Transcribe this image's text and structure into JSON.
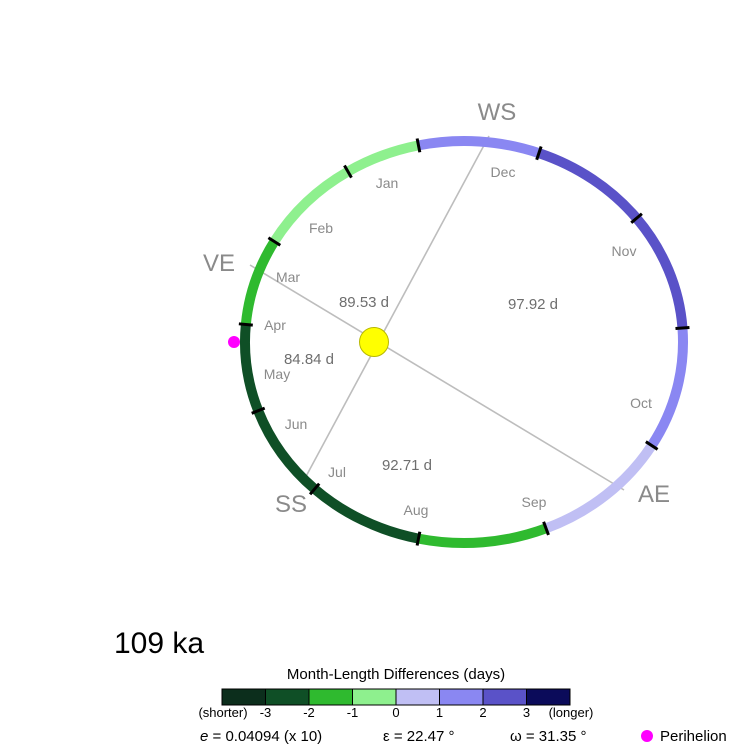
{
  "orbit": {
    "seasons": {
      "ws": "WS",
      "ve": "VE",
      "ss": "SS",
      "ae": "AE"
    },
    "months": [
      {
        "label": "Jan",
        "color": "#8ef08e"
      },
      {
        "label": "Dec",
        "color": "#8a87f2"
      },
      {
        "label": "Nov",
        "color": "#5a52c8"
      },
      {
        "label": "Oct",
        "color": "#5a52c8"
      },
      {
        "label": "Sep",
        "color": "#8a87f2"
      },
      {
        "label": "Aug",
        "color": "#c0bff4"
      },
      {
        "label": "Jul",
        "color": "#2fba2f"
      },
      {
        "label": "Jun",
        "color": "#0f4f26"
      },
      {
        "label": "May",
        "color": "#0f4f26"
      },
      {
        "label": "Apr",
        "color": "#0f4f26"
      },
      {
        "label": "Mar",
        "color": "#2fba2f"
      },
      {
        "label": "Feb",
        "color": "#8ef08e"
      }
    ],
    "season_lengths": {
      "winter_spring": "89.53 d",
      "autumn_winter": "97.92 d",
      "spring_summer": "84.84 d",
      "summer_autumn": "92.71 d"
    },
    "sun_color": "#ffff00",
    "perihelion_color": "#ff00ff"
  },
  "age": "109 ka",
  "colorbar": {
    "title": "Month-Length Differences (days)",
    "colors": [
      "#0c2e1c",
      "#0f4f26",
      "#2fba2f",
      "#8ef08e",
      "#c0bff4",
      "#8a87f2",
      "#5a52c8",
      "#0b0b5a"
    ],
    "ticks": [
      "-3",
      "-2",
      "-1",
      "0",
      "1",
      "2",
      "3"
    ],
    "left_label": "(shorter)",
    "right_label": "(longer)"
  },
  "params": {
    "e_symbol": "e",
    "e_text": " = 0.04094 (x 10)",
    "obliquity": "ε = 22.47 °",
    "precession": "ω = 31.35 °"
  },
  "legend": {
    "perihelion": "Perihelion"
  }
}
